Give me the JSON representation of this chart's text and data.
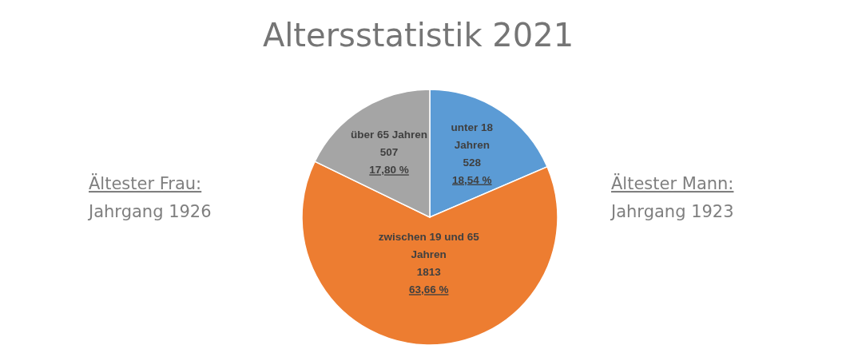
{
  "chart_data": {
    "type": "pie",
    "title": "Altersstatistik 2021",
    "categories": [
      "unter 18 Jahren",
      "zwischen 19 und 65 Jahren",
      "über 65 Jahren"
    ],
    "values": [
      18.54,
      63.66,
      17.8
    ],
    "colors": [
      "#5b9bd5",
      "#ed7d31",
      "#a5a5a5"
    ],
    "value_labels": [
      "18,54 %",
      "63,66 %",
      "17,80 %"
    ],
    "annotations": [
      "Ältester Frau:",
      "Jahrgang 1926",
      "Ältester Mann:",
      "Jahrgang 1923",
      {
        "text": "528",
        "x": "unter 18 Jahren"
      },
      {
        "text": "1813",
        "x": "zwischen 19 und 65 Jahren"
      },
      {
        "text": "507",
        "x": "über 65 Jahren"
      }
    ]
  }
}
